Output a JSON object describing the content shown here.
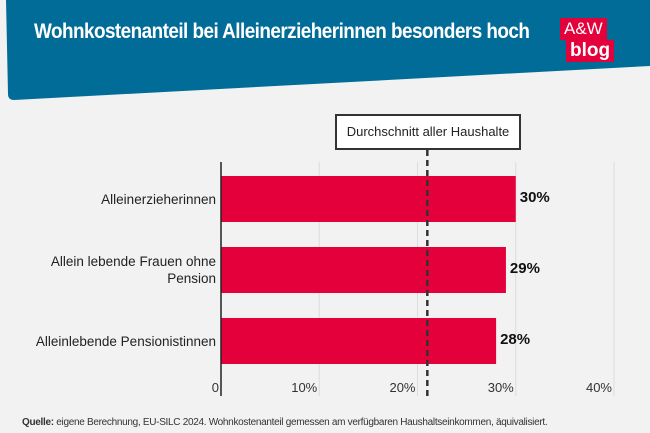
{
  "header": {
    "title": "Wohnkostenanteil bei Alleinerzieherinnen besonders hoch",
    "logo": {
      "line1": "A&W",
      "line2": "blog"
    },
    "color": "#026c98"
  },
  "chart_data": {
    "type": "bar",
    "orientation": "horizontal",
    "categories": [
      "Alleinerzieherinnen",
      "Allein lebende Frauen ohne Pension",
      "Alleinlebende Pensionistinnen"
    ],
    "values": [
      30,
      29,
      28
    ],
    "value_labels": [
      "30%",
      "29%",
      "28%"
    ],
    "xlim": [
      0,
      40
    ],
    "xticks": [
      "0",
      "10%",
      "20%",
      "30%",
      "40%"
    ],
    "grid": true,
    "bar_color": "#e4003a",
    "reference_line": {
      "label": "Durchschnitt aller Haushalte",
      "value": 21,
      "style": "dashed"
    }
  },
  "footer": {
    "source_label": "Quelle:",
    "source_text": " eigene Berechnung, EU-SILC 2024. Wohnkostenanteil gemessen am verfügbaren Haushaltseinkommen, äquivalisiert."
  }
}
